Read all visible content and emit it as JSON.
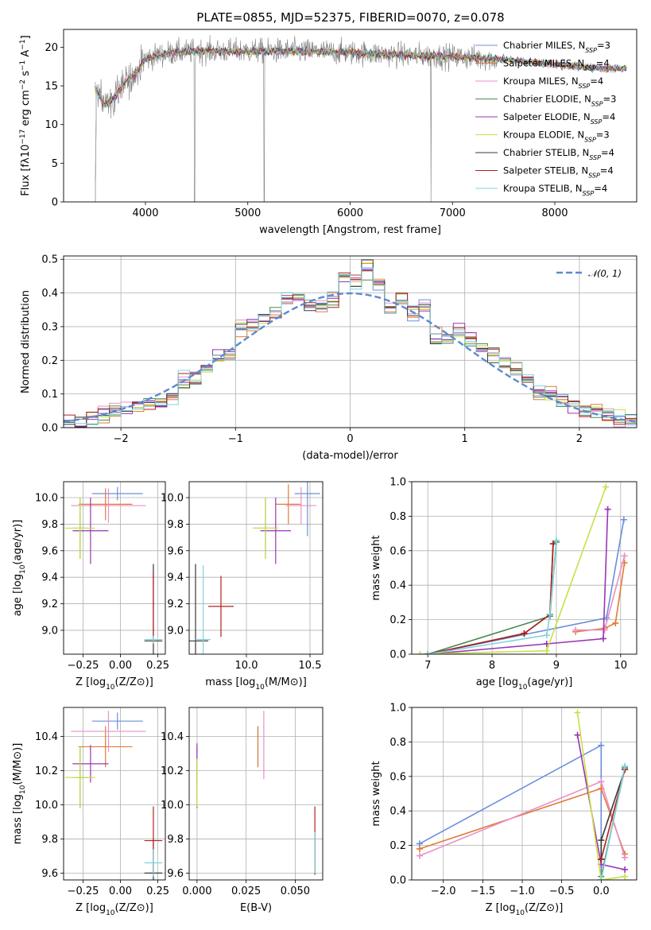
{
  "figure": {
    "title": "PLATE=0855, MJD=52375, FIBERID=0070, z=0.078"
  },
  "colors": {
    "Chabrier MILES": "#6a8fdc",
    "Salpeter MILES": "#e07b39",
    "Kroupa MILES": "#e890c8",
    "Chabrier ELODIE": "#4d8a55",
    "Salpeter ELODIE": "#9a35b5",
    "Kroupa ELODIE": "#c8e048",
    "Chabrier STELIB": "#3a3a3a",
    "Salpeter STELIB": "#b0201e",
    "Kroupa STELIB": "#7fd3dc"
  },
  "legend_order": [
    "Chabrier MILES",
    "Salpeter MILES",
    "Kroupa MILES",
    "Chabrier ELODIE",
    "Salpeter ELODIE",
    "Kroupa ELODIE",
    "Chabrier STELIB",
    "Salpeter STELIB",
    "Kroupa STELIB"
  ],
  "chart_data": [
    {
      "id": "spectrum",
      "type": "line",
      "xlabel": "wavelength [Angstrom, rest frame]",
      "ylabel": "Flux [fλ10⁻¹⁷ erg cm⁻² s⁻¹ A⁻¹]",
      "xlim": [
        3200,
        8800
      ],
      "ylim": [
        0,
        22.3
      ],
      "xticks": [
        4000,
        5000,
        6000,
        7000,
        8000
      ],
      "yticks": [
        0,
        5,
        10,
        15,
        20
      ],
      "grid": false,
      "legend_position": "right",
      "data_points": [
        [
          3500,
          15.0
        ],
        [
          3600,
          12.5
        ],
        [
          3700,
          13.5
        ],
        [
          3800,
          15.5
        ],
        [
          3900,
          16.5
        ],
        [
          4000,
          18.5
        ],
        [
          4200,
          19.2
        ],
        [
          4500,
          19.5
        ],
        [
          5000,
          19.5
        ],
        [
          5500,
          19.5
        ],
        [
          6000,
          19.3
        ],
        [
          6500,
          19.0
        ],
        [
          7000,
          18.8
        ],
        [
          7500,
          18.4
        ],
        [
          8000,
          17.8
        ],
        [
          8500,
          17.2
        ]
      ],
      "series": [
        {
          "name": "Chabrier MILES",
          "legend": "Chabrier MILES, N_SSP=3",
          "nssp": 3
        },
        {
          "name": "Salpeter MILES",
          "legend": "Salpeter MILES, N_SSP=4",
          "nssp": 4
        },
        {
          "name": "Kroupa MILES",
          "legend": "Kroupa MILES, N_SSP=4",
          "nssp": 4
        },
        {
          "name": "Chabrier ELODIE",
          "legend": "Chabrier ELODIE, N_SSP=3",
          "nssp": 3
        },
        {
          "name": "Salpeter ELODIE",
          "legend": "Salpeter ELODIE, N_SSP=4",
          "nssp": 4
        },
        {
          "name": "Kroupa ELODIE",
          "legend": "Kroupa ELODIE, N_SSP=3",
          "nssp": 3
        },
        {
          "name": "Chabrier STELIB",
          "legend": "Chabrier STELIB, N_SSP=4",
          "nssp": 4
        },
        {
          "name": "Salpeter STELIB",
          "legend": "Salpeter STELIB, N_SSP=4",
          "nssp": 4
        },
        {
          "name": "Kroupa STELIB",
          "legend": "Kroupa STELIB, N_SSP=4",
          "nssp": 4
        }
      ]
    },
    {
      "id": "residuals",
      "type": "line",
      "xlabel": "(data-model)/error",
      "ylabel": "Normed distribution",
      "xlim": [
        -2.5,
        2.5
      ],
      "ylim": [
        0,
        0.51
      ],
      "xticks": [
        -2,
        -1,
        0,
        1,
        2
      ],
      "yticks": [
        0.0,
        0.1,
        0.2,
        0.3,
        0.4,
        0.5
      ],
      "grid": true,
      "legend_position": "top-right",
      "gaussian_label": "𝒩(0, 1)",
      "bin_width": 0.1,
      "hist_centers": [
        -2.45,
        -2.35,
        -2.25,
        -2.15,
        -2.05,
        -1.95,
        -1.85,
        -1.75,
        -1.65,
        -1.55,
        -1.45,
        -1.35,
        -1.25,
        -1.15,
        -1.05,
        -0.95,
        -0.85,
        -0.75,
        -0.65,
        -0.55,
        -0.45,
        -0.35,
        -0.25,
        -0.15,
        -0.05,
        0.05,
        0.15,
        0.25,
        0.35,
        0.45,
        0.55,
        0.65,
        0.75,
        0.85,
        0.95,
        1.05,
        1.15,
        1.25,
        1.35,
        1.45,
        1.55,
        1.65,
        1.75,
        1.85,
        1.95,
        2.05,
        2.15,
        2.25,
        2.35,
        2.45
      ],
      "hist_values": [
        0.02,
        0.02,
        0.03,
        0.04,
        0.05,
        0.05,
        0.06,
        0.07,
        0.08,
        0.09,
        0.14,
        0.14,
        0.17,
        0.2,
        0.22,
        0.3,
        0.3,
        0.33,
        0.35,
        0.38,
        0.39,
        0.36,
        0.36,
        0.38,
        0.45,
        0.44,
        0.47,
        0.42,
        0.36,
        0.38,
        0.34,
        0.36,
        0.27,
        0.27,
        0.29,
        0.27,
        0.24,
        0.22,
        0.19,
        0.17,
        0.14,
        0.11,
        0.1,
        0.08,
        0.07,
        0.05,
        0.05,
        0.04,
        0.03,
        0.03
      ]
    },
    {
      "id": "age-vs-Z",
      "type": "scatter",
      "xlabel": "Z [log₁₀(Z/Z⊙)]",
      "ylabel": "age  [log₁₀(age/yr)]",
      "xlim": [
        -0.38,
        0.3
      ],
      "ylim": [
        8.82,
        10.12
      ],
      "xticks": [
        -0.25,
        0.0,
        0.25
      ],
      "xtick_labels": [
        "−0.25",
        "0.00",
        "0.25"
      ],
      "yticks": [
        9.0,
        9.2,
        9.4,
        9.6,
        9.8,
        10.0
      ],
      "grid": true,
      "errorbars": [
        {
          "series": "Chabrier MILES",
          "x": -0.02,
          "y": 10.03,
          "xerr": 0.17,
          "yerr": 0.05
        },
        {
          "series": "Salpeter MILES",
          "x": -0.1,
          "y": 9.95,
          "xerr": 0.18,
          "yerr": 0.12
        },
        {
          "series": "Kroupa MILES",
          "x": -0.08,
          "y": 9.94,
          "xerr": 0.25,
          "yerr": 0.13
        },
        {
          "series": "Chabrier ELODIE",
          "x": -0.27,
          "y": 9.77,
          "xerr": 0.05,
          "yerr": 0.23
        },
        {
          "series": "Salpeter ELODIE",
          "x": -0.2,
          "y": 9.75,
          "xerr": 0.12,
          "yerr": 0.25
        },
        {
          "series": "Kroupa ELODIE",
          "x": -0.27,
          "y": 9.77,
          "xerr": 0.1,
          "yerr": 0.23
        },
        {
          "series": "Chabrier STELIB",
          "x": 0.22,
          "y": 8.92,
          "xerr": 0.06,
          "yerr": 0.58
        },
        {
          "series": "Salpeter STELIB",
          "x": 0.22,
          "y": 9.18,
          "xerr": 0.0,
          "yerr": 0.26
        },
        {
          "series": "Kroupa STELIB",
          "x": 0.22,
          "y": 8.93,
          "xerr": 0.06,
          "yerr": 0.03
        }
      ]
    },
    {
      "id": "age-vs-mass",
      "type": "scatter",
      "xlabel": "mass [log₁₀(M/M⊙)]",
      "ylabel": "",
      "xlim": [
        9.55,
        10.6
      ],
      "ylim": [
        8.82,
        10.12
      ],
      "xticks": [
        10.0,
        10.5
      ],
      "xtick_labels": [
        "10.0",
        "10.5"
      ],
      "yticks": [
        9.0,
        9.2,
        9.4,
        9.6,
        9.8,
        10.0
      ],
      "grid": true,
      "errorbars": [
        {
          "series": "Chabrier MILES",
          "x": 10.48,
          "y": 10.03,
          "xerr": 0.1,
          "yerr": 0.32
        },
        {
          "series": "Salpeter MILES",
          "x": 10.33,
          "y": 9.95,
          "xerr": 0.1,
          "yerr": 0.15
        },
        {
          "series": "Kroupa MILES",
          "x": 10.43,
          "y": 9.94,
          "xerr": 0.12,
          "yerr": 0.14
        },
        {
          "series": "Chabrier ELODIE",
          "x": 10.15,
          "y": 9.77,
          "xerr": 0.1,
          "yerr": 0.23
        },
        {
          "series": "Salpeter ELODIE",
          "x": 10.23,
          "y": 9.75,
          "xerr": 0.12,
          "yerr": 0.25
        },
        {
          "series": "Kroupa ELODIE",
          "x": 10.15,
          "y": 9.77,
          "xerr": 0.1,
          "yerr": 0.23
        },
        {
          "series": "Chabrier STELIB",
          "x": 9.6,
          "y": 8.92,
          "xerr": 0.1,
          "yerr": 0.58
        },
        {
          "series": "Salpeter STELIB",
          "x": 9.8,
          "y": 9.18,
          "xerr": 0.1,
          "yerr": 0.23
        },
        {
          "series": "Kroupa STELIB",
          "x": 9.66,
          "y": 8.93,
          "xerr": 0.06,
          "yerr": 0.56
        }
      ]
    },
    {
      "id": "mass-weight-vs-age",
      "type": "line",
      "xlabel": "age  [log₁₀(age/yr)]",
      "ylabel": "mass weight",
      "xlim": [
        6.75,
        10.25
      ],
      "ylim": [
        0,
        1.0
      ],
      "xticks": [
        7,
        8,
        9,
        10
      ],
      "yticks": [
        0.0,
        0.2,
        0.4,
        0.6,
        0.8,
        1.0
      ],
      "grid": true,
      "lines": [
        {
          "series": "Chabrier MILES",
          "points": [
            [
              7.0,
              0.0
            ],
            [
              9.78,
              0.21
            ],
            [
              10.05,
              0.78
            ]
          ]
        },
        {
          "series": "Salpeter MILES",
          "points": [
            [
              9.3,
              0.13
            ],
            [
              9.75,
              0.15
            ],
            [
              9.92,
              0.18
            ],
            [
              10.06,
              0.53
            ]
          ]
        },
        {
          "series": "Kroupa MILES",
          "points": [
            [
              9.3,
              0.14
            ],
            [
              9.75,
              0.14
            ],
            [
              10.06,
              0.57
            ]
          ]
        },
        {
          "series": "Chabrier ELODIE",
          "points": [
            [
              7.0,
              0.0
            ],
            [
              8.9,
              0.22
            ],
            [
              9.0,
              0.65
            ]
          ]
        },
        {
          "series": "Salpeter ELODIE",
          "points": [
            [
              7.0,
              0.0
            ],
            [
              8.85,
              0.06
            ],
            [
              9.73,
              0.09
            ],
            [
              9.8,
              0.84
            ]
          ]
        },
        {
          "series": "Kroupa ELODIE",
          "points": [
            [
              6.88,
              0.0
            ],
            [
              8.85,
              0.02
            ],
            [
              9.77,
              0.97
            ]
          ]
        },
        {
          "series": "Chabrier STELIB",
          "points": [
            [
              7.0,
              0.0
            ],
            [
              8.5,
              0.12
            ],
            [
              8.9,
              0.23
            ],
            [
              8.95,
              0.64
            ]
          ]
        },
        {
          "series": "Salpeter STELIB",
          "points": [
            [
              7.0,
              0.0
            ],
            [
              8.5,
              0.12
            ],
            [
              8.9,
              0.23
            ],
            [
              8.95,
              0.64
            ]
          ]
        },
        {
          "series": "Kroupa STELIB",
          "points": [
            [
              7.0,
              0.0
            ],
            [
              8.85,
              0.11
            ],
            [
              8.9,
              0.23
            ],
            [
              9.0,
              0.66
            ]
          ]
        }
      ]
    },
    {
      "id": "mass-vs-Z",
      "type": "scatter",
      "xlabel": "Z [log₁₀(Z/Z⊙)]",
      "ylabel": "mass [log₁₀(M/M⊙)]",
      "xlim": [
        -0.38,
        0.3
      ],
      "ylim": [
        9.56,
        10.57
      ],
      "xticks": [
        -0.25,
        0.0,
        0.25
      ],
      "xtick_labels": [
        "−0.25",
        "0.00",
        "0.25"
      ],
      "yticks": [
        9.6,
        9.8,
        10.0,
        10.2,
        10.4
      ],
      "grid": true,
      "errorbars": [
        {
          "series": "Chabrier MILES",
          "x": -0.02,
          "y": 10.49,
          "xerr": 0.17,
          "yerr": 0.05
        },
        {
          "series": "Salpeter MILES",
          "x": -0.1,
          "y": 10.34,
          "xerr": 0.18,
          "yerr": 0.12
        },
        {
          "series": "Kroupa MILES",
          "x": -0.08,
          "y": 10.43,
          "xerr": 0.25,
          "yerr": 0.12
        },
        {
          "series": "Chabrier ELODIE",
          "x": -0.27,
          "y": 10.16,
          "xerr": 0.05,
          "yerr": 0.18
        },
        {
          "series": "Salpeter ELODIE",
          "x": -0.2,
          "y": 10.24,
          "xerr": 0.12,
          "yerr": 0.11
        },
        {
          "series": "Kroupa ELODIE",
          "x": -0.27,
          "y": 10.16,
          "xerr": 0.1,
          "yerr": 0.18
        },
        {
          "series": "Chabrier STELIB",
          "x": 0.22,
          "y": 9.6,
          "xerr": 0.06,
          "yerr": 0.2
        },
        {
          "series": "Salpeter STELIB",
          "x": 0.22,
          "y": 9.79,
          "xerr": 0.06,
          "yerr": 0.2
        },
        {
          "series": "Kroupa STELIB",
          "x": 0.22,
          "y": 9.66,
          "xerr": 0.06,
          "yerr": 0.08
        }
      ]
    },
    {
      "id": "mass-vs-EBV",
      "type": "scatter",
      "xlabel": "E(B-V)",
      "ylabel": "",
      "xlim": [
        -0.004,
        0.064
      ],
      "ylim": [
        9.56,
        10.57
      ],
      "xticks": [
        0.0,
        0.025,
        0.05
      ],
      "xtick_labels": [
        "0.000",
        "0.025",
        "0.050"
      ],
      "yticks": [
        9.6,
        9.8,
        10.0,
        10.2,
        10.4
      ],
      "grid": true,
      "errorbars": [
        {
          "series": "Chabrier MILES",
          "x": 0.031,
          "y": 10.34,
          "xerr": 0.0,
          "yerr": 0.12
        },
        {
          "series": "Salpeter MILES",
          "x": 0.031,
          "y": 10.34,
          "xerr": 0.0,
          "yerr": 0.12
        },
        {
          "series": "Kroupa MILES",
          "x": 0.034,
          "y": 10.35,
          "xerr": 0.0,
          "yerr": 0.2
        },
        {
          "series": "Chabrier ELODIE",
          "x": 0.0,
          "y": 10.16,
          "xerr": 0.0,
          "yerr": 0.18
        },
        {
          "series": "Salpeter ELODIE",
          "x": 0.0,
          "y": 10.24,
          "xerr": 0.0,
          "yerr": 0.12
        },
        {
          "series": "Kroupa ELODIE",
          "x": 0.0,
          "y": 10.13,
          "xerr": 0.0,
          "yerr": 0.14
        },
        {
          "series": "Chabrier STELIB",
          "x": 0.06,
          "y": 9.72,
          "xerr": 0.0,
          "yerr": 0.12
        },
        {
          "series": "Salpeter STELIB",
          "x": 0.06,
          "y": 9.79,
          "xerr": 0.0,
          "yerr": 0.2
        },
        {
          "series": "Kroupa STELIB",
          "x": 0.06,
          "y": 9.72,
          "xerr": 0.0,
          "yerr": 0.12
        }
      ]
    },
    {
      "id": "mass-weight-vs-Z",
      "type": "line",
      "xlabel": "Z [log₁₀(Z/Z⊙)]",
      "ylabel": "mass weight",
      "xlim": [
        -2.4,
        0.45
      ],
      "ylim": [
        0,
        1.0
      ],
      "xticks": [
        -2.0,
        -1.5,
        -1.0,
        -0.5,
        0.0
      ],
      "xtick_labels": [
        "−2.0",
        "−1.5",
        "−1.0",
        "−0.5",
        "0.0"
      ],
      "yticks": [
        0.0,
        0.2,
        0.4,
        0.6,
        0.8,
        1.0
      ],
      "grid": true,
      "lines": [
        {
          "series": "Chabrier MILES",
          "points": [
            [
              -2.3,
              0.21
            ],
            [
              0.0,
              0.78
            ],
            [
              0.0,
              0.0
            ]
          ]
        },
        {
          "series": "Salpeter MILES",
          "points": [
            [
              -2.3,
              0.18
            ],
            [
              0.0,
              0.53
            ],
            [
              0.3,
              0.15
            ]
          ]
        },
        {
          "series": "Kroupa MILES",
          "points": [
            [
              -2.3,
              0.14
            ],
            [
              0.0,
              0.57
            ],
            [
              0.3,
              0.13
            ]
          ]
        },
        {
          "series": "Chabrier ELODIE",
          "points": [
            [
              0.0,
              0.02
            ],
            [
              0.3,
              0.65
            ]
          ]
        },
        {
          "series": "Salpeter ELODIE",
          "points": [
            [
              -0.3,
              0.84
            ],
            [
              0.0,
              0.09
            ],
            [
              0.3,
              0.06
            ]
          ]
        },
        {
          "series": "Kroupa ELODIE",
          "points": [
            [
              -0.3,
              0.97
            ],
            [
              0.0,
              0.0
            ],
            [
              0.3,
              0.02
            ]
          ]
        },
        {
          "series": "Chabrier STELIB",
          "points": [
            [
              0.0,
              0.12
            ],
            [
              0.0,
              0.23
            ],
            [
              0.3,
              0.64
            ]
          ]
        },
        {
          "series": "Salpeter STELIB",
          "points": [
            [
              0.0,
              0.12
            ],
            [
              0.3,
              0.64
            ]
          ]
        },
        {
          "series": "Kroupa STELIB",
          "points": [
            [
              0.0,
              0.0
            ],
            [
              0.3,
              0.66
            ]
          ]
        }
      ]
    }
  ]
}
